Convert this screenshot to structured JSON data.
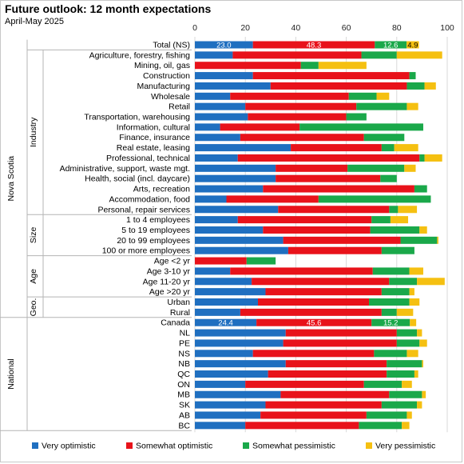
{
  "title": "Future outlook: 12 month expectations",
  "subtitle": "April-May 2025",
  "colors": {
    "very_optimistic": "#1f6fc0",
    "somewhat_optimistic": "#e8121a",
    "somewhat_pessimistic": "#1aa84a",
    "very_pessimistic": "#f5c011"
  },
  "chart_data": {
    "type": "bar",
    "orientation": "horizontal",
    "stacked": true,
    "xlim": [
      0,
      100
    ],
    "x_ticks": [
      "0",
      "20",
      "40",
      "60",
      "80",
      "100"
    ],
    "grid": true,
    "legend_position": "bottom",
    "series_names": [
      "Very optimistic",
      "Somewhat optimistic",
      "Somewhat pessimistic",
      "Very pessimistic"
    ],
    "categories": [
      "Total (NS)",
      "Agriculture, forestry, fishing",
      "Mining, oil, gas",
      "Construction",
      "Manufacturing",
      "Wholesale",
      "Retail",
      "Transportation, warehousing",
      "Information, cultural",
      "Finance, insurance",
      "Real estate, leasing",
      "Professional, technical",
      "Administrative, support, waste mgt.",
      "Health, social (incl. daycare)",
      "Arts, recreation",
      "Accommodation, food",
      "Personal, repair services",
      "1 to 4 employees",
      "5 to 19 employees",
      "20 to 99 employees",
      "100 or more employees",
      "Age <2 yr",
      "Age 3-10 yr",
      "Age 11-20 yr",
      "Age >20 yr",
      "Urban",
      "Rural",
      "Canada",
      "NL",
      "PE",
      "NS",
      "NB",
      "QC",
      "ON",
      "MB",
      "SK",
      "AB",
      "BC"
    ],
    "values": [
      [
        23.0,
        48.3,
        12.6,
        4.9
      ],
      [
        15,
        51,
        14,
        18
      ],
      [
        0,
        42,
        7,
        19
      ],
      [
        23,
        62,
        2.5,
        0
      ],
      [
        30,
        54,
        7,
        4.5
      ],
      [
        14,
        47,
        11,
        5
      ],
      [
        20,
        44,
        20,
        4.5
      ],
      [
        21,
        39,
        8,
        0
      ],
      [
        10,
        31.5,
        49,
        0
      ],
      [
        18,
        49,
        16,
        0
      ],
      [
        38,
        36,
        5,
        9.5
      ],
      [
        17,
        72,
        2,
        7
      ],
      [
        32,
        28.5,
        22.5,
        4.5
      ],
      [
        32,
        41.5,
        6.5,
        0
      ],
      [
        27,
        60,
        5,
        0
      ],
      [
        12.5,
        36.5,
        44.5,
        0
      ],
      [
        33,
        44,
        3.5,
        7.5
      ],
      [
        17,
        53,
        7.5,
        7
      ],
      [
        27,
        42.5,
        19.5,
        3
      ],
      [
        35,
        46.5,
        14.5,
        0.5
      ],
      [
        37,
        37,
        13,
        0
      ],
      [
        0,
        20.5,
        11.5,
        0
      ],
      [
        14,
        56.5,
        14.5,
        5.5
      ],
      [
        22.5,
        54.5,
        11,
        11
      ],
      [
        28,
        46,
        11,
        2
      ],
      [
        25,
        44,
        16,
        4
      ],
      [
        18,
        56,
        6,
        6.5
      ],
      [
        24.4,
        45.6,
        15.2,
        2.5
      ],
      [
        36,
        44,
        8,
        2
      ],
      [
        35,
        45,
        9,
        3
      ],
      [
        23,
        48,
        13,
        4.5
      ],
      [
        36,
        40,
        14,
        0.5
      ],
      [
        29,
        47,
        11,
        1.5
      ],
      [
        20,
        47,
        15,
        4
      ],
      [
        34,
        43,
        13,
        1.5
      ],
      [
        28,
        46,
        14,
        2
      ],
      [
        26,
        42,
        16,
        2
      ],
      [
        20,
        45,
        17,
        3
      ]
    ],
    "data_labels": [
      {
        "category": "Total (NS)",
        "values": [
          "23.0",
          "48.3",
          "12.6",
          "4.9"
        ]
      },
      {
        "category": "Canada",
        "values": [
          "24.4",
          "45.6",
          "15.2",
          ""
        ]
      }
    ],
    "groups": [
      {
        "name": "Industry",
        "parent": "Nova Scotia",
        "from": 1,
        "to": 16
      },
      {
        "name": "Size",
        "parent": "Nova Scotia",
        "from": 17,
        "to": 20
      },
      {
        "name": "Age",
        "parent": "Nova Scotia",
        "from": 21,
        "to": 24
      },
      {
        "name": "Geo.",
        "parent": "Nova Scotia",
        "from": 25,
        "to": 26
      }
    ],
    "outer_groups": [
      {
        "name": "Nova Scotia",
        "from": 0,
        "to": 26
      },
      {
        "name": "National",
        "from": 27,
        "to": 37
      }
    ]
  }
}
